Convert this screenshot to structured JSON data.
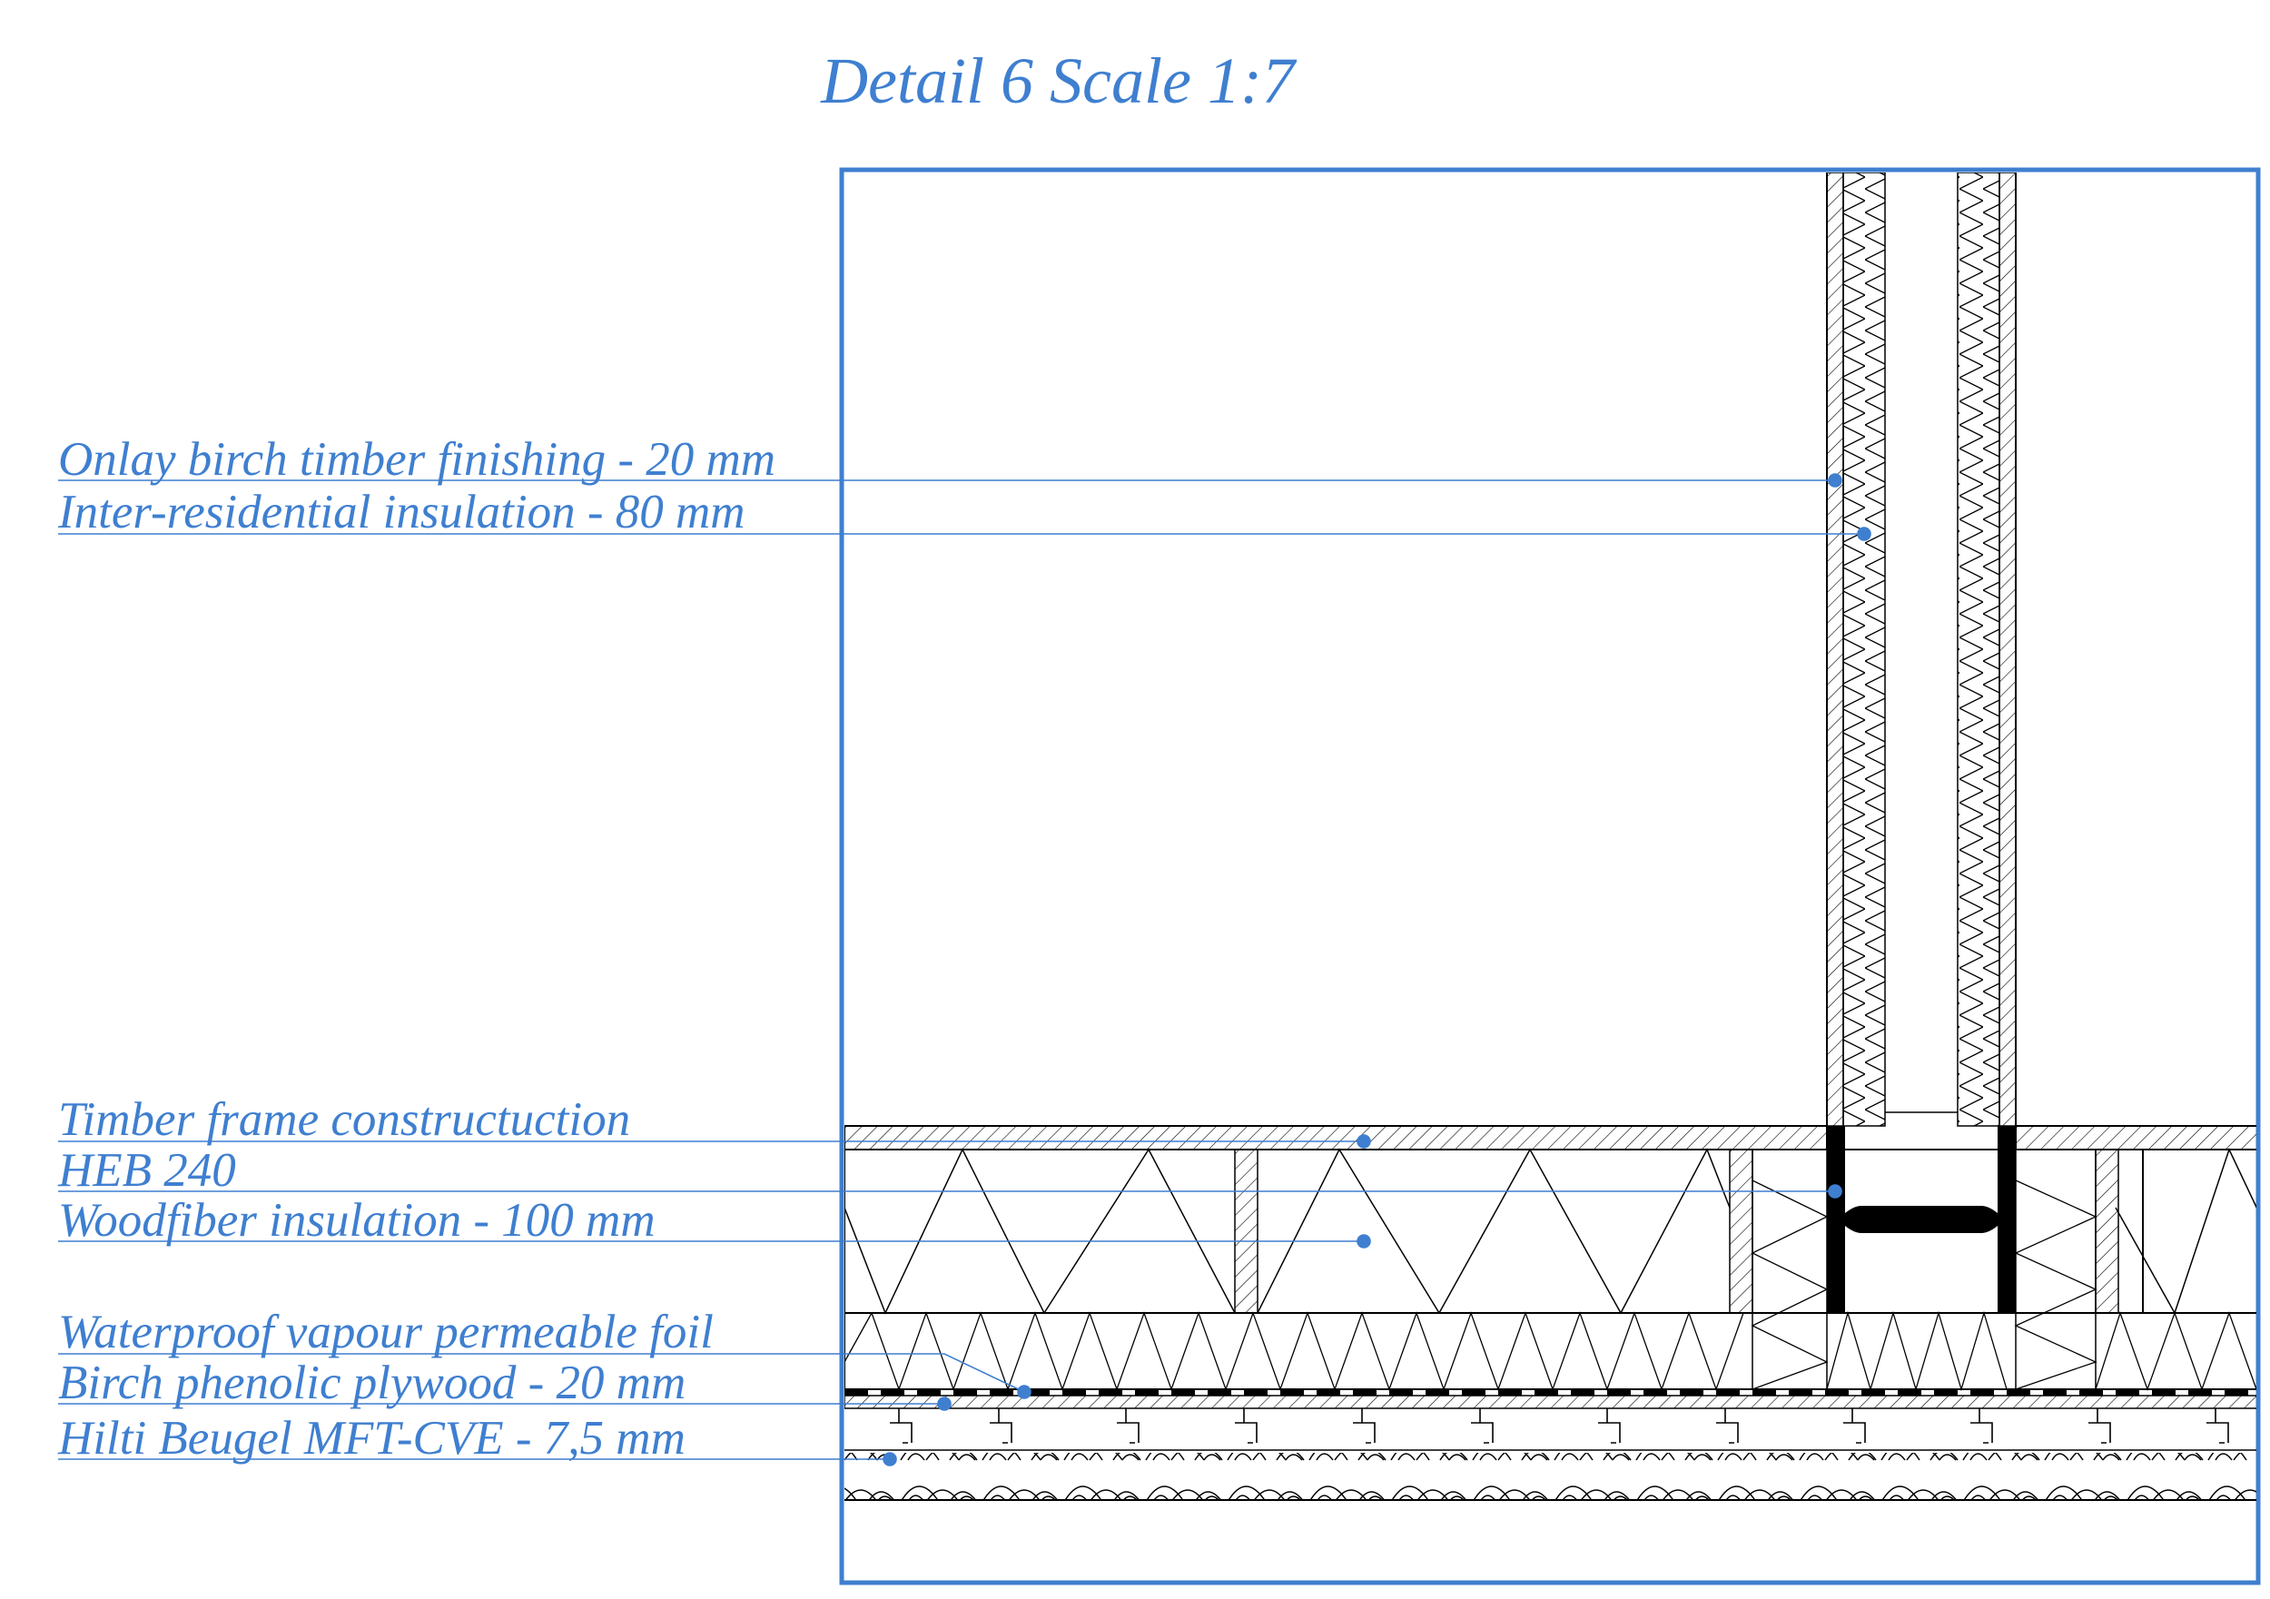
{
  "title": "Detail 6 Scale 1:7",
  "accent_color": "#3f7fd0",
  "line_color": "#000000",
  "labels": [
    {
      "text": "Onlay birch timber finishing - 20 mm"
    },
    {
      "text": "Inter-residential insulation - 80 mm"
    },
    {
      "text": "Timber frame constructuction"
    },
    {
      "text": "HEB 240"
    },
    {
      "text": "Woodfiber insulation - 100 mm"
    },
    {
      "text": "Waterproof  vapour permeable foil"
    },
    {
      "text": "Birch phenolic plywood - 20 mm"
    },
    {
      "text": "Hilti Beugel MFT-CVE - 7,5 mm"
    }
  ]
}
